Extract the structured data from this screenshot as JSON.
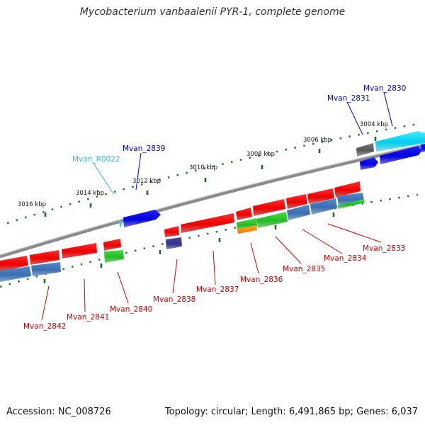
{
  "title": "Mycobacterium vanbaalenii PYR-1, complete genome",
  "footer": {
    "accession": "Accession: NC_008726",
    "summary": "Topology: circular; Length: 6,491,865 bp; Genes: 6,037"
  },
  "ticks": [
    {
      "label": "3004 kbp"
    },
    {
      "label": "3006 kbp"
    },
    {
      "label": "3008 kbp"
    },
    {
      "label": "3010 kbp"
    },
    {
      "label": "3012 kbp"
    },
    {
      "label": "3014 kbp"
    },
    {
      "label": "3016 kbp"
    }
  ],
  "genes": [
    {
      "label": "Mvan_2830",
      "color": "#0000cc"
    },
    {
      "label": "Mvan_2831",
      "color": "#0000cc"
    },
    {
      "label": "Mvan_2839",
      "color": "#0000cc"
    },
    {
      "label": "Mvan_R0022",
      "color": "#33bbdd"
    },
    {
      "label": "Mvan_2833",
      "color": "#cc0000"
    },
    {
      "label": "Mvan_2834",
      "color": "#cc0000"
    },
    {
      "label": "Mvan_2835",
      "color": "#cc0000"
    },
    {
      "label": "Mvan_2836",
      "color": "#cc0000"
    },
    {
      "label": "Mvan_2837",
      "color": "#cc0000"
    },
    {
      "label": "Mvan_2838",
      "color": "#cc0000"
    },
    {
      "label": "Mvan_2840",
      "color": "#cc0000"
    },
    {
      "label": "Mvan_2841",
      "color": "#cc0000"
    },
    {
      "label": "Mvan_2842",
      "color": "#cc0000"
    }
  ]
}
